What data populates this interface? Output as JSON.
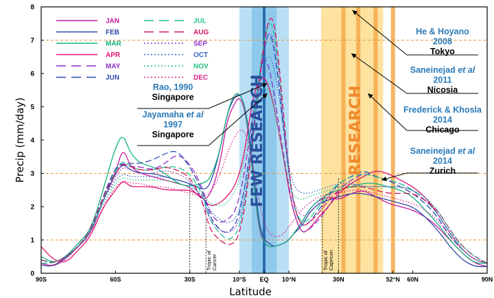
{
  "chart_data": {
    "type": "line",
    "xlabel": "Latitude",
    "ylabel": "Precip  (mm/day)",
    "x_ticks": [
      {
        "value": -90,
        "label": "90S"
      },
      {
        "value": -60,
        "label": "60S"
      },
      {
        "value": -30,
        "label": "30S"
      },
      {
        "value": -10,
        "label": "10°S",
        "highlight": true
      },
      {
        "value": 0,
        "label": "EQ"
      },
      {
        "value": 10,
        "label": "10°N",
        "highlight": true
      },
      {
        "value": 30,
        "label": "30N"
      },
      {
        "value": 52,
        "label": "52°N",
        "highlight": true
      },
      {
        "value": 60,
        "label": "60N"
      },
      {
        "value": 90,
        "label": "90N"
      }
    ],
    "xlim": [
      -90,
      90
    ],
    "ylim": [
      0,
      8
    ],
    "y_ticks": [
      0,
      1,
      2,
      3,
      4,
      5,
      6,
      7,
      8
    ],
    "grid": "horizontal dashed orange lines at 1, 3 and 7",
    "hlines": [
      1,
      3,
      7
    ],
    "tropic_lines": [
      {
        "value": -23.5,
        "label_top": "Tropic of",
        "label_bottom": "Cancer"
      },
      {
        "value": 23.5,
        "label_top": "Tropic of",
        "label_bottom": "Capricon"
      }
    ],
    "dotted_lines": [
      -30,
      30
    ],
    "bands": [
      {
        "from": -10,
        "to": 10,
        "label": "FEW RESEARCH",
        "color": "#b9dff5"
      },
      {
        "from": 23,
        "to": 48,
        "label": "RESEARCH",
        "color": "#fde2a0"
      }
    ],
    "inner_bands": [
      {
        "from": -5,
        "to": 5,
        "color": "#8ec9ec"
      }
    ],
    "research_lines": [
      32,
      38,
      45,
      52
    ],
    "equator_line": 0,
    "legend": [
      {
        "name": "JAN",
        "color": "#c4189c",
        "dash": "solid"
      },
      {
        "name": "FEB",
        "color": "#2f49a8",
        "dash": "solid"
      },
      {
        "name": "MAR",
        "color": "#12b07f",
        "dash": "solid"
      },
      {
        "name": "APR",
        "color": "#e0146e",
        "dash": "solid"
      },
      {
        "name": "MAY",
        "color": "#8b2fc9",
        "dash": "longdash"
      },
      {
        "name": "JUN",
        "color": "#2e48b0",
        "dash": "longdash"
      },
      {
        "name": "JUL",
        "color": "#1fc495",
        "dash": "longdash"
      },
      {
        "name": "AUG",
        "color": "#d4145a",
        "dash": "longdash"
      },
      {
        "name": "SEP",
        "color": "#8a35c8",
        "dash": "dot"
      },
      {
        "name": "OCT",
        "color": "#2e64c8",
        "dash": "dot"
      },
      {
        "name": "NOV",
        "color": "#22c07e",
        "dash": "dot"
      },
      {
        "name": "DEC",
        "color": "#d8208a",
        "dash": "dot"
      }
    ],
    "x": [
      -90,
      -85,
      -80,
      -75,
      -70,
      -65,
      -60,
      -57,
      -54,
      -50,
      -45,
      -40,
      -35,
      -30,
      -25,
      -22,
      -18,
      -15,
      -12,
      -10,
      -8,
      -6,
      -4,
      -2,
      0,
      2,
      4,
      6,
      8,
      10,
      12,
      15,
      18,
      22,
      26,
      30,
      35,
      40,
      45,
      50,
      55,
      60,
      65,
      70,
      75,
      80,
      85,
      90
    ],
    "series": [
      {
        "name": "JAN",
        "values": [
          0.3,
          0.2,
          0.5,
          0.8,
          1.2,
          2.2,
          3.0,
          3.8,
          3.2,
          3.0,
          2.9,
          2.8,
          2.7,
          2.6,
          2.2,
          2.3,
          3.2,
          4.6,
          5.1,
          5.3,
          5.0,
          4.0,
          2.5,
          1.3,
          0.9,
          0.8,
          0.8,
          0.85,
          0.9,
          1.0,
          1.2,
          1.5,
          1.9,
          2.2,
          2.3,
          2.2,
          2.4,
          2.5,
          2.3,
          2.1,
          2.0,
          1.9,
          1.7,
          1.4,
          1.0,
          0.6,
          0.3,
          0.2
        ]
      },
      {
        "name": "FEB",
        "values": [
          0.25,
          0.2,
          0.45,
          0.8,
          1.2,
          2.2,
          3.0,
          3.3,
          3.1,
          3.0,
          3.0,
          2.9,
          2.8,
          2.7,
          2.5,
          2.6,
          3.6,
          4.8,
          5.3,
          5.4,
          5.1,
          4.2,
          2.8,
          1.5,
          1.0,
          0.9,
          0.8,
          0.85,
          0.9,
          1.0,
          1.2,
          1.4,
          1.8,
          2.1,
          2.2,
          2.3,
          2.4,
          2.4,
          2.3,
          2.2,
          2.1,
          2.0,
          1.7,
          1.3,
          0.8,
          0.4,
          0.2,
          0.2
        ]
      },
      {
        "name": "MAR",
        "values": [
          0.5,
          0.3,
          0.5,
          0.9,
          1.3,
          2.5,
          3.8,
          4.2,
          3.6,
          3.3,
          3.2,
          3.0,
          2.7,
          2.6,
          2.7,
          2.8,
          3.6,
          4.8,
          5.4,
          5.4,
          5.1,
          4.0,
          2.5,
          1.4,
          0.9,
          0.8,
          0.8,
          0.85,
          0.9,
          1.0,
          1.2,
          1.5,
          1.9,
          2.2,
          2.4,
          2.5,
          2.6,
          2.7,
          2.7,
          2.6,
          2.5,
          2.3,
          1.9,
          1.5,
          1.0,
          0.6,
          0.3,
          0.3
        ]
      },
      {
        "name": "APR",
        "values": [
          0.8,
          0.4,
          0.3,
          0.7,
          1.1,
          2.0,
          2.5,
          2.8,
          2.6,
          2.6,
          2.6,
          2.5,
          2.5,
          2.5,
          2.3,
          2.0,
          2.1,
          2.3,
          2.6,
          3.0,
          3.6,
          4.6,
          5.4,
          5.8,
          5.9,
          5.6,
          5.0,
          4.2,
          3.4,
          2.5,
          1.8,
          1.2,
          1.3,
          1.7,
          2.0,
          2.4,
          2.7,
          2.9,
          3.1,
          3.0,
          2.8,
          2.6,
          2.3,
          1.8,
          1.2,
          0.7,
          0.4,
          0.3
        ]
      },
      {
        "name": "MAY",
        "values": [
          0.4,
          0.3,
          0.5,
          0.8,
          1.3,
          2.3,
          3.1,
          3.3,
          3.2,
          3.2,
          3.1,
          3.3,
          3.6,
          3.3,
          2.6,
          1.8,
          1.5,
          1.6,
          1.8,
          2.3,
          3.0,
          4.0,
          5.0,
          5.9,
          6.5,
          6.2,
          5.4,
          4.4,
          3.5,
          2.6,
          1.8,
          1.2,
          1.3,
          1.6,
          2.0,
          2.5,
          2.8,
          3.0,
          2.9,
          2.8,
          2.7,
          2.5,
          2.2,
          1.8,
          1.2,
          0.7,
          0.4,
          0.3
        ]
      },
      {
        "name": "JUN",
        "values": [
          0.4,
          0.3,
          0.5,
          0.8,
          1.3,
          2.3,
          3.2,
          3.3,
          3.3,
          3.3,
          3.4,
          3.6,
          3.7,
          3.2,
          2.5,
          1.7,
          1.3,
          1.2,
          1.4,
          1.8,
          2.5,
          3.5,
          4.6,
          5.8,
          6.8,
          7.3,
          6.8,
          5.6,
          4.2,
          3.0,
          2.0,
          1.4,
          1.5,
          1.9,
          2.3,
          2.7,
          2.9,
          3.1,
          2.9,
          2.8,
          2.6,
          2.4,
          2.1,
          1.7,
          1.1,
          0.7,
          0.4,
          0.3
        ]
      },
      {
        "name": "JUL",
        "values": [
          0.3,
          0.3,
          0.5,
          0.8,
          1.3,
          2.2,
          3.1,
          3.4,
          3.2,
          3.1,
          3.1,
          3.2,
          3.2,
          3.0,
          2.4,
          1.6,
          1.2,
          1.0,
          1.1,
          1.4,
          2.1,
          3.2,
          4.6,
          6.0,
          7.0,
          7.6,
          7.3,
          6.0,
          4.4,
          3.0,
          2.0,
          1.5,
          1.6,
          2.0,
          2.4,
          2.7,
          2.9,
          3.0,
          2.9,
          2.8,
          2.7,
          2.5,
          2.2,
          1.8,
          1.2,
          0.7,
          0.4,
          0.3
        ]
      },
      {
        "name": "AUG",
        "values": [
          0.4,
          0.3,
          0.5,
          0.8,
          1.3,
          2.3,
          3.0,
          3.3,
          3.2,
          3.1,
          3.1,
          3.2,
          3.1,
          2.9,
          2.2,
          1.3,
          1.0,
          0.85,
          0.9,
          1.2,
          1.9,
          3.0,
          4.4,
          5.8,
          6.9,
          7.7,
          7.6,
          6.3,
          4.6,
          3.1,
          2.0,
          1.4,
          1.5,
          1.8,
          2.2,
          2.5,
          2.6,
          2.6,
          2.5,
          2.4,
          2.4,
          2.4,
          2.2,
          1.9,
          1.3,
          0.8,
          0.5,
          0.3
        ]
      },
      {
        "name": "SEP",
        "values": [
          0.4,
          0.3,
          0.5,
          0.8,
          1.3,
          2.2,
          2.9,
          3.2,
          3.1,
          3.0,
          3.0,
          3.1,
          3.0,
          2.8,
          2.2,
          1.6,
          1.3,
          1.2,
          1.3,
          1.6,
          2.2,
          3.2,
          4.4,
          5.7,
          6.7,
          7.3,
          7.0,
          5.9,
          4.4,
          3.0,
          2.1,
          1.7,
          1.8,
          2.1,
          2.4,
          2.6,
          2.7,
          2.6,
          2.6,
          2.6,
          2.6,
          2.5,
          2.2,
          1.8,
          1.2,
          0.8,
          0.5,
          0.3
        ]
      },
      {
        "name": "OCT",
        "values": [
          0.4,
          0.3,
          0.5,
          0.8,
          1.3,
          2.2,
          2.8,
          3.0,
          2.9,
          2.9,
          2.9,
          2.9,
          2.8,
          2.7,
          2.3,
          1.9,
          1.6,
          1.5,
          1.6,
          1.9,
          2.5,
          3.4,
          4.5,
          5.5,
          6.3,
          6.6,
          6.2,
          5.3,
          4.2,
          3.2,
          2.6,
          2.4,
          2.4,
          2.5,
          2.6,
          2.7,
          2.7,
          2.6,
          2.6,
          2.6,
          2.6,
          2.5,
          2.3,
          1.9,
          1.3,
          0.8,
          0.5,
          0.3
        ]
      },
      {
        "name": "NOV",
        "values": [
          0.4,
          0.3,
          0.5,
          0.8,
          1.3,
          2.1,
          2.7,
          2.9,
          2.8,
          2.8,
          2.8,
          2.8,
          2.7,
          2.6,
          2.4,
          2.1,
          2.0,
          2.1,
          2.4,
          2.8,
          3.4,
          4.2,
          4.9,
          5.4,
          5.6,
          5.5,
          5.0,
          4.2,
          3.4,
          2.7,
          2.3,
          2.2,
          2.3,
          2.4,
          2.5,
          2.6,
          2.6,
          2.6,
          2.6,
          2.6,
          2.6,
          2.5,
          2.3,
          1.9,
          1.3,
          0.8,
          0.5,
          0.3
        ]
      },
      {
        "name": "DEC",
        "values": [
          0.3,
          0.2,
          0.4,
          0.8,
          1.2,
          2.0,
          2.6,
          2.8,
          2.7,
          2.7,
          2.6,
          2.6,
          2.5,
          2.4,
          2.3,
          2.4,
          2.9,
          3.6,
          4.1,
          4.3,
          4.3,
          3.8,
          3.0,
          2.1,
          1.5,
          1.2,
          1.1,
          1.1,
          1.2,
          1.4,
          1.6,
          1.9,
          2.1,
          2.3,
          2.4,
          2.4,
          2.5,
          2.5,
          2.4,
          2.3,
          2.2,
          2.1,
          1.9,
          1.6,
          1.1,
          0.7,
          0.4,
          0.3
        ]
      }
    ],
    "annotations": [
      {
        "lines": [
          {
            "text": "He & Hoyano",
            "color": "blue"
          },
          {
            "text": "2008",
            "color": "blue"
          },
          {
            "text": "Tokyo",
            "color": "black"
          }
        ],
        "arrow_to": [
          35.6,
          7.9
        ]
      },
      {
        "lines": [
          {
            "text": "Saneinejad et al",
            "color": "blue"
          },
          {
            "text": "2011",
            "color": "blue"
          },
          {
            "text": "Nicosia",
            "color": "black"
          }
        ],
        "arrow_to": [
          35.2,
          6.6
        ]
      },
      {
        "lines": [
          {
            "text": "Frederick & Khosla",
            "color": "blue"
          },
          {
            "text": "2014",
            "color": "blue"
          },
          {
            "text": "Chicago",
            "color": "black"
          }
        ],
        "arrow_to": [
          41.9,
          5.4
        ]
      },
      {
        "lines": [
          {
            "text": "Saneinejad et al",
            "color": "blue"
          },
          {
            "text": "2014",
            "color": "blue"
          },
          {
            "text": "Zurich",
            "color": "black"
          }
        ],
        "arrow_to": [
          47.4,
          2.8
        ]
      },
      {
        "lines": [
          {
            "text": "Rao, 1990",
            "color": "blue"
          },
          {
            "text": "Singapore",
            "color": "black"
          }
        ],
        "arrow_to": [
          1.3,
          5.7
        ]
      },
      {
        "lines": [
          {
            "text": "Jayamaha et al",
            "color": "blue"
          },
          {
            "text": "1997",
            "color": "blue"
          },
          {
            "text": "Singapore",
            "color": "black"
          }
        ],
        "arrow_to": [
          1.3,
          5.4
        ]
      }
    ]
  }
}
